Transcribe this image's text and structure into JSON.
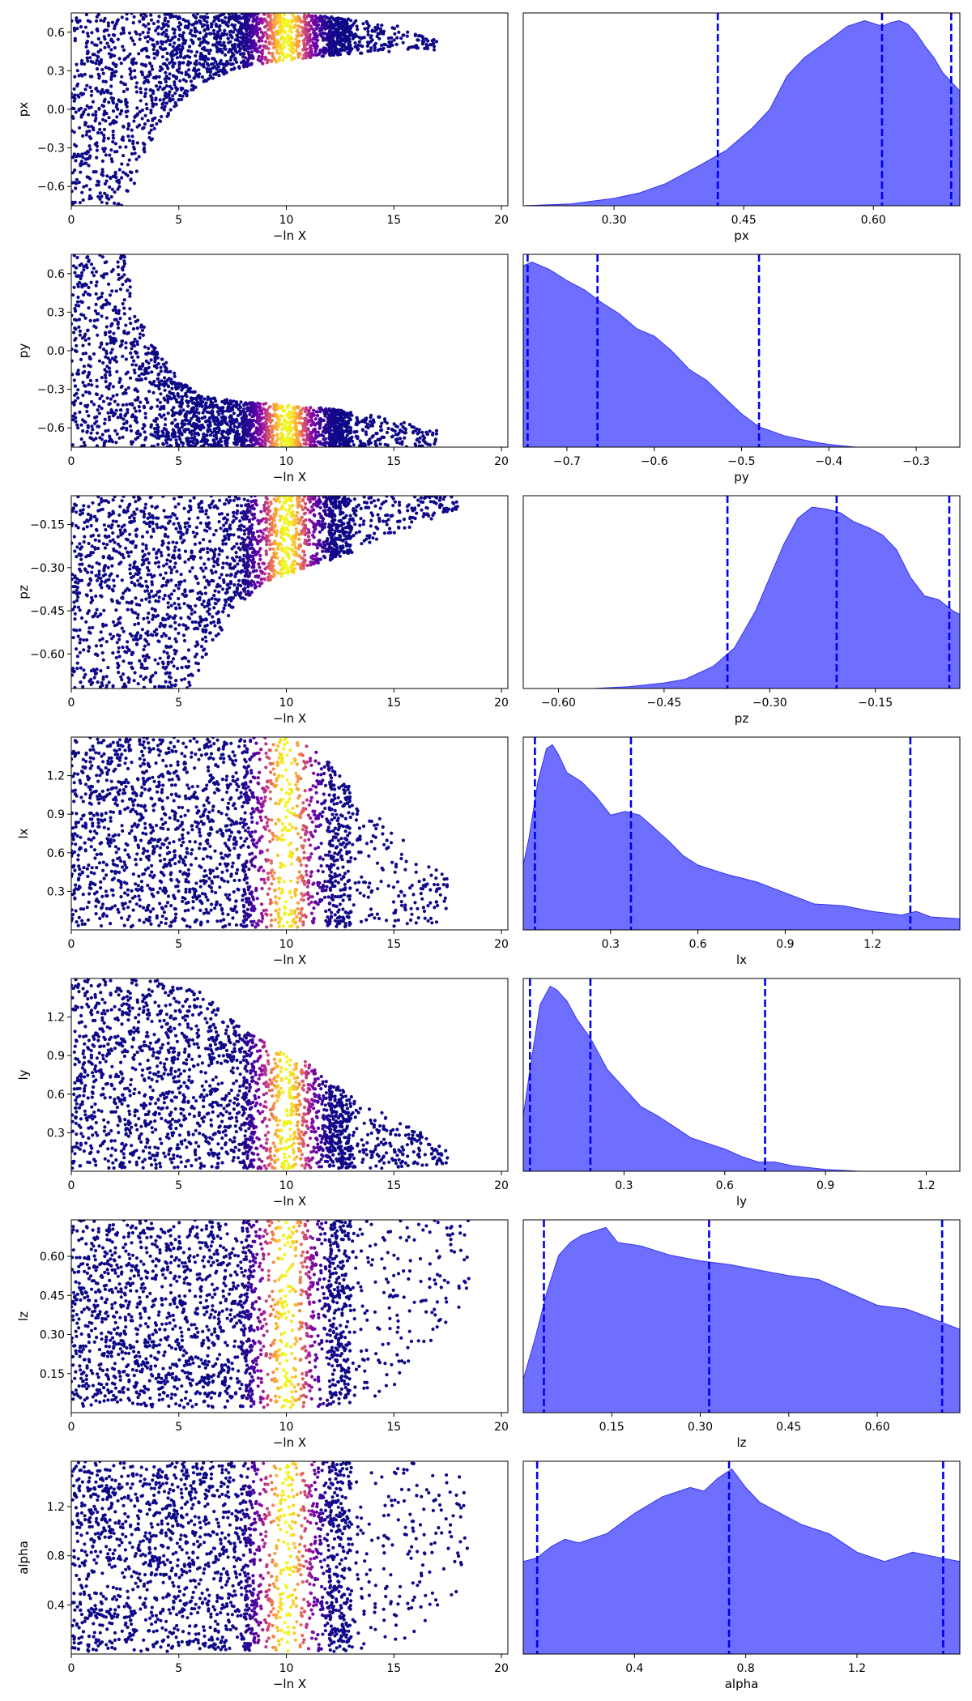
{
  "chart_data": [
    {
      "type": "scatter",
      "panel": "trace-px",
      "xlabel": "−ln X",
      "ylabel": "px",
      "xlim": [
        0,
        20.3
      ],
      "ylim": [
        -0.75,
        0.75
      ],
      "xticks": [
        0,
        5,
        10,
        15,
        20
      ],
      "yticks": [
        -0.6,
        -0.3,
        0.0,
        0.3,
        0.6
      ],
      "ytick_labels": [
        "−0.6",
        "−0.3",
        "0.0",
        "0.3",
        "0.6"
      ],
      "colormap": "plasma",
      "color_peak": 10,
      "envelope": {
        "x": [
          0,
          2.5,
          3,
          4,
          5,
          6,
          8,
          10,
          12,
          15,
          17
        ],
        "lo": [
          -0.75,
          -0.75,
          -0.55,
          -0.15,
          0.05,
          0.2,
          0.33,
          0.38,
          0.42,
          0.45,
          0.46
        ],
        "hi": [
          0.75,
          0.75,
          0.75,
          0.75,
          0.75,
          0.75,
          0.75,
          0.75,
          0.72,
          0.66,
          0.55
        ]
      }
    },
    {
      "type": "area",
      "panel": "posterior-px",
      "xlabel": "px",
      "xlim": [
        0.195,
        0.7
      ],
      "xticks": [
        0.3,
        0.45,
        0.6
      ],
      "xtick_labels": [
        "0.30",
        "0.45",
        "0.60"
      ],
      "quantiles": [
        0.42,
        0.61,
        0.69
      ],
      "density": {
        "x": [
          0.195,
          0.25,
          0.3,
          0.33,
          0.36,
          0.4,
          0.43,
          0.46,
          0.48,
          0.5,
          0.52,
          0.55,
          0.57,
          0.59,
          0.61,
          0.62,
          0.63,
          0.64,
          0.65,
          0.66,
          0.67,
          0.68,
          0.7
        ],
        "y": [
          0,
          0.01,
          0.04,
          0.07,
          0.12,
          0.22,
          0.3,
          0.42,
          0.52,
          0.7,
          0.8,
          0.9,
          0.97,
          1.0,
          0.97,
          0.99,
          1.0,
          0.98,
          0.93,
          0.86,
          0.8,
          0.72,
          0.62
        ]
      }
    },
    {
      "type": "scatter",
      "panel": "trace-py",
      "xlabel": "−ln X",
      "ylabel": "py",
      "xlim": [
        0,
        20.3
      ],
      "ylim": [
        -0.75,
        0.75
      ],
      "xticks": [
        0,
        5,
        10,
        15,
        20
      ],
      "yticks": [
        -0.6,
        -0.3,
        0.0,
        0.3,
        0.6
      ],
      "ytick_labels": [
        "−0.6",
        "−0.3",
        "0.0",
        "0.3",
        "0.6"
      ],
      "colormap": "plasma",
      "color_peak": 10,
      "envelope": {
        "x": [
          0,
          2.5,
          3,
          4,
          5,
          6,
          8,
          10,
          12,
          14,
          17
        ],
        "lo": [
          -0.75,
          -0.75,
          -0.75,
          -0.75,
          -0.75,
          -0.75,
          -0.75,
          -0.75,
          -0.75,
          -0.75,
          -0.75
        ],
        "hi": [
          0.75,
          0.75,
          0.3,
          0.0,
          -0.22,
          -0.35,
          -0.4,
          -0.42,
          -0.45,
          -0.5,
          -0.62
        ]
      }
    },
    {
      "type": "area",
      "panel": "posterior-py",
      "xlabel": "py",
      "xlim": [
        -0.75,
        -0.25
      ],
      "xticks": [
        -0.7,
        -0.6,
        -0.5,
        -0.4,
        -0.3
      ],
      "xtick_labels": [
        "−0.7",
        "−0.6",
        "−0.5",
        "−0.4",
        "−0.3"
      ],
      "quantiles": [
        -0.745,
        -0.665,
        -0.48
      ],
      "density": {
        "x": [
          -0.75,
          -0.74,
          -0.72,
          -0.7,
          -0.68,
          -0.66,
          -0.64,
          -0.62,
          -0.6,
          -0.58,
          -0.56,
          -0.54,
          -0.52,
          -0.5,
          -0.48,
          -0.45,
          -0.42,
          -0.4,
          -0.37,
          -0.25
        ],
        "y": [
          0.98,
          1.0,
          0.96,
          0.9,
          0.85,
          0.78,
          0.72,
          0.64,
          0.6,
          0.52,
          0.42,
          0.36,
          0.27,
          0.18,
          0.11,
          0.06,
          0.03,
          0.015,
          0,
          0
        ]
      }
    },
    {
      "type": "scatter",
      "panel": "trace-pz",
      "xlabel": "−ln X",
      "ylabel": "pz",
      "xlim": [
        0,
        20.3
      ],
      "ylim": [
        -0.72,
        -0.05
      ],
      "xticks": [
        0,
        5,
        10,
        15,
        20
      ],
      "yticks": [
        -0.6,
        -0.45,
        -0.3,
        -0.15
      ],
      "ytick_labels": [
        "−0.60",
        "−0.45",
        "−0.30",
        "−0.15"
      ],
      "colormap": "plasma",
      "color_peak": 10,
      "envelope": {
        "x": [
          0,
          2,
          4,
          5.5,
          6.5,
          7.5,
          9,
          11,
          13,
          15,
          18
        ],
        "lo": [
          -0.72,
          -0.72,
          -0.72,
          -0.72,
          -0.6,
          -0.45,
          -0.35,
          -0.3,
          -0.25,
          -0.18,
          -0.1
        ],
        "hi": [
          -0.05,
          -0.05,
          -0.05,
          -0.05,
          -0.05,
          -0.05,
          -0.05,
          -0.05,
          -0.05,
          -0.05,
          -0.05
        ]
      }
    },
    {
      "type": "area",
      "panel": "posterior-pz",
      "xlabel": "pz",
      "xlim": [
        -0.65,
        -0.03
      ],
      "xticks": [
        -0.6,
        -0.45,
        -0.3,
        -0.15
      ],
      "xtick_labels": [
        "−0.60",
        "−0.45",
        "−0.30",
        "−0.15"
      ],
      "quantiles": [
        -0.36,
        -0.205,
        -0.045
      ],
      "density": {
        "x": [
          -0.65,
          -0.55,
          -0.5,
          -0.45,
          -0.42,
          -0.38,
          -0.35,
          -0.32,
          -0.3,
          -0.28,
          -0.26,
          -0.24,
          -0.22,
          -0.2,
          -0.18,
          -0.16,
          -0.14,
          -0.12,
          -0.1,
          -0.08,
          -0.06,
          -0.04,
          -0.03
        ],
        "y": [
          0,
          0,
          0.01,
          0.03,
          0.05,
          0.12,
          0.22,
          0.42,
          0.6,
          0.78,
          0.92,
          0.98,
          0.97,
          0.95,
          0.9,
          0.87,
          0.83,
          0.75,
          0.6,
          0.5,
          0.48,
          0.42,
          0.4
        ]
      }
    },
    {
      "type": "scatter",
      "panel": "trace-lx",
      "xlabel": "−ln X",
      "ylabel": "lx",
      "xlim": [
        0,
        20.3
      ],
      "ylim": [
        0.0,
        1.5
      ],
      "xticks": [
        0,
        5,
        10,
        15,
        20
      ],
      "yticks": [
        0.3,
        0.6,
        0.9,
        1.2
      ],
      "ytick_labels": [
        "0.3",
        "0.6",
        "0.9",
        "1.2"
      ],
      "colormap": "plasma",
      "color_peak": 10,
      "envelope": {
        "x": [
          0,
          7,
          9,
          10,
          11,
          12,
          13,
          14,
          15,
          16,
          17.5
        ],
        "lo": [
          0.02,
          0.02,
          0.02,
          0.02,
          0.02,
          0.02,
          0.02,
          0.02,
          0.02,
          0.03,
          0.05
        ],
        "hi": [
          1.5,
          1.5,
          1.5,
          1.5,
          1.45,
          1.3,
          1.1,
          0.9,
          0.8,
          0.6,
          0.4
        ]
      }
    },
    {
      "type": "area",
      "panel": "posterior-lx",
      "xlabel": "lx",
      "xlim": [
        0.0,
        1.5
      ],
      "xticks": [
        0.3,
        0.6,
        0.9,
        1.2
      ],
      "xtick_labels": [
        "0.3",
        "0.6",
        "0.9",
        "1.2"
      ],
      "quantiles": [
        0.04,
        0.37,
        1.33
      ],
      "density": {
        "x": [
          0.0,
          0.02,
          0.05,
          0.08,
          0.1,
          0.12,
          0.15,
          0.2,
          0.25,
          0.3,
          0.35,
          0.4,
          0.45,
          0.5,
          0.55,
          0.6,
          0.7,
          0.8,
          0.9,
          1.0,
          1.1,
          1.2,
          1.3,
          1.35,
          1.4,
          1.5
        ],
        "y": [
          0.35,
          0.5,
          0.8,
          0.98,
          1.0,
          0.95,
          0.85,
          0.8,
          0.72,
          0.62,
          0.64,
          0.62,
          0.55,
          0.48,
          0.4,
          0.35,
          0.3,
          0.26,
          0.2,
          0.14,
          0.13,
          0.1,
          0.08,
          0.1,
          0.07,
          0.06
        ]
      }
    },
    {
      "type": "scatter",
      "panel": "trace-ly",
      "xlabel": "−ln X",
      "ylabel": "ly",
      "xlim": [
        0,
        20.3
      ],
      "ylim": [
        0.0,
        1.5
      ],
      "xticks": [
        0,
        5,
        10,
        15,
        20
      ],
      "yticks": [
        0.3,
        0.6,
        0.9,
        1.2
      ],
      "ytick_labels": [
        "0.3",
        "0.6",
        "0.9",
        "1.2"
      ],
      "colormap": "plasma",
      "color_peak": 10,
      "envelope": {
        "x": [
          0,
          2,
          4,
          6,
          8,
          10,
          11,
          12,
          13,
          14,
          15,
          16.5,
          17.5
        ],
        "lo": [
          0.02,
          0.02,
          0.02,
          0.02,
          0.02,
          0.02,
          0.02,
          0.02,
          0.02,
          0.02,
          0.02,
          0.03,
          0.05
        ],
        "hi": [
          1.5,
          1.5,
          1.5,
          1.4,
          1.1,
          0.9,
          0.85,
          0.7,
          0.6,
          0.5,
          0.4,
          0.28,
          0.15
        ]
      }
    },
    {
      "type": "area",
      "panel": "posterior-ly",
      "xlabel": "ly",
      "xlim": [
        0.0,
        1.3
      ],
      "xticks": [
        0.3,
        0.6,
        0.9,
        1.2
      ],
      "xtick_labels": [
        "0.3",
        "0.6",
        "0.9",
        "1.2"
      ],
      "quantiles": [
        0.02,
        0.2,
        0.72
      ],
      "density": {
        "x": [
          0.0,
          0.02,
          0.05,
          0.08,
          0.1,
          0.13,
          0.16,
          0.2,
          0.25,
          0.3,
          0.35,
          0.4,
          0.45,
          0.5,
          0.55,
          0.6,
          0.65,
          0.7,
          0.75,
          0.8,
          0.9,
          1.0,
          1.3
        ],
        "y": [
          0.3,
          0.55,
          0.9,
          1.0,
          0.98,
          0.92,
          0.82,
          0.72,
          0.55,
          0.45,
          0.35,
          0.3,
          0.24,
          0.18,
          0.15,
          0.12,
          0.08,
          0.05,
          0.05,
          0.03,
          0.01,
          0,
          0
        ]
      }
    },
    {
      "type": "scatter",
      "panel": "trace-lz",
      "xlabel": "−ln X",
      "ylabel": "lz",
      "xlim": [
        0,
        20.3
      ],
      "ylim": [
        0.0,
        0.74
      ],
      "xticks": [
        0,
        5,
        10,
        15,
        20
      ],
      "yticks": [
        0.15,
        0.3,
        0.45,
        0.6
      ],
      "ytick_labels": [
        "0.15",
        "0.30",
        "0.45",
        "0.60"
      ],
      "colormap": "plasma",
      "color_peak": 10,
      "envelope": {
        "x": [
          0,
          6,
          9,
          11,
          13,
          14,
          15,
          16,
          17,
          18.5
        ],
        "lo": [
          0.02,
          0.02,
          0.02,
          0.02,
          0.03,
          0.05,
          0.1,
          0.2,
          0.3,
          0.45
        ],
        "hi": [
          0.74,
          0.74,
          0.74,
          0.74,
          0.74,
          0.74,
          0.74,
          0.74,
          0.74,
          0.74
        ]
      }
    },
    {
      "type": "area",
      "panel": "posterior-lz",
      "xlabel": "lz",
      "xlim": [
        0.0,
        0.74
      ],
      "xticks": [
        0.15,
        0.3,
        0.45,
        0.6
      ],
      "xtick_labels": [
        "0.15",
        "0.30",
        "0.45",
        "0.60"
      ],
      "quantiles": [
        0.035,
        0.315,
        0.71
      ],
      "density": {
        "x": [
          0.0,
          0.02,
          0.04,
          0.06,
          0.08,
          0.1,
          0.12,
          0.14,
          0.16,
          0.2,
          0.25,
          0.3,
          0.35,
          0.4,
          0.45,
          0.5,
          0.55,
          0.6,
          0.65,
          0.7,
          0.74
        ],
        "y": [
          0.18,
          0.4,
          0.65,
          0.85,
          0.92,
          0.96,
          0.98,
          1.0,
          0.92,
          0.9,
          0.85,
          0.82,
          0.8,
          0.77,
          0.74,
          0.72,
          0.65,
          0.58,
          0.56,
          0.5,
          0.45
        ]
      }
    },
    {
      "type": "scatter",
      "panel": "trace-alpha",
      "xlabel": "−ln X",
      "ylabel": "alpha",
      "xlim": [
        0,
        20.3
      ],
      "ylim": [
        0.0,
        1.57
      ],
      "xticks": [
        0,
        5,
        10,
        15,
        20
      ],
      "yticks": [
        0.4,
        0.8,
        1.2
      ],
      "ytick_labels": [
        "0.4",
        "0.8",
        "1.2"
      ],
      "colormap": "plasma",
      "color_peak": 10,
      "envelope": {
        "x": [
          0,
          8,
          11,
          13,
          14,
          15,
          16,
          17,
          18.5
        ],
        "lo": [
          0.02,
          0.02,
          0.02,
          0.02,
          0.04,
          0.08,
          0.15,
          0.3,
          0.6
        ],
        "hi": [
          1.57,
          1.57,
          1.57,
          1.57,
          1.57,
          1.57,
          1.57,
          1.5,
          1.45
        ]
      }
    },
    {
      "type": "area",
      "panel": "posterior-alpha",
      "xlabel": "alpha",
      "xlim": [
        0.0,
        1.57
      ],
      "xticks": [
        0.4,
        0.8,
        1.2
      ],
      "xtick_labels": [
        "0.4",
        "0.8",
        "1.2"
      ],
      "quantiles": [
        0.05,
        0.74,
        1.51
      ],
      "density": {
        "x": [
          0.0,
          0.05,
          0.1,
          0.15,
          0.2,
          0.3,
          0.4,
          0.5,
          0.6,
          0.65,
          0.7,
          0.75,
          0.8,
          0.85,
          0.9,
          1.0,
          1.1,
          1.2,
          1.3,
          1.4,
          1.5,
          1.57
        ],
        "y": [
          0.5,
          0.52,
          0.58,
          0.62,
          0.6,
          0.65,
          0.76,
          0.85,
          0.9,
          0.88,
          0.95,
          1.0,
          0.9,
          0.82,
          0.78,
          0.7,
          0.65,
          0.55,
          0.5,
          0.55,
          0.52,
          0.5
        ]
      }
    }
  ]
}
